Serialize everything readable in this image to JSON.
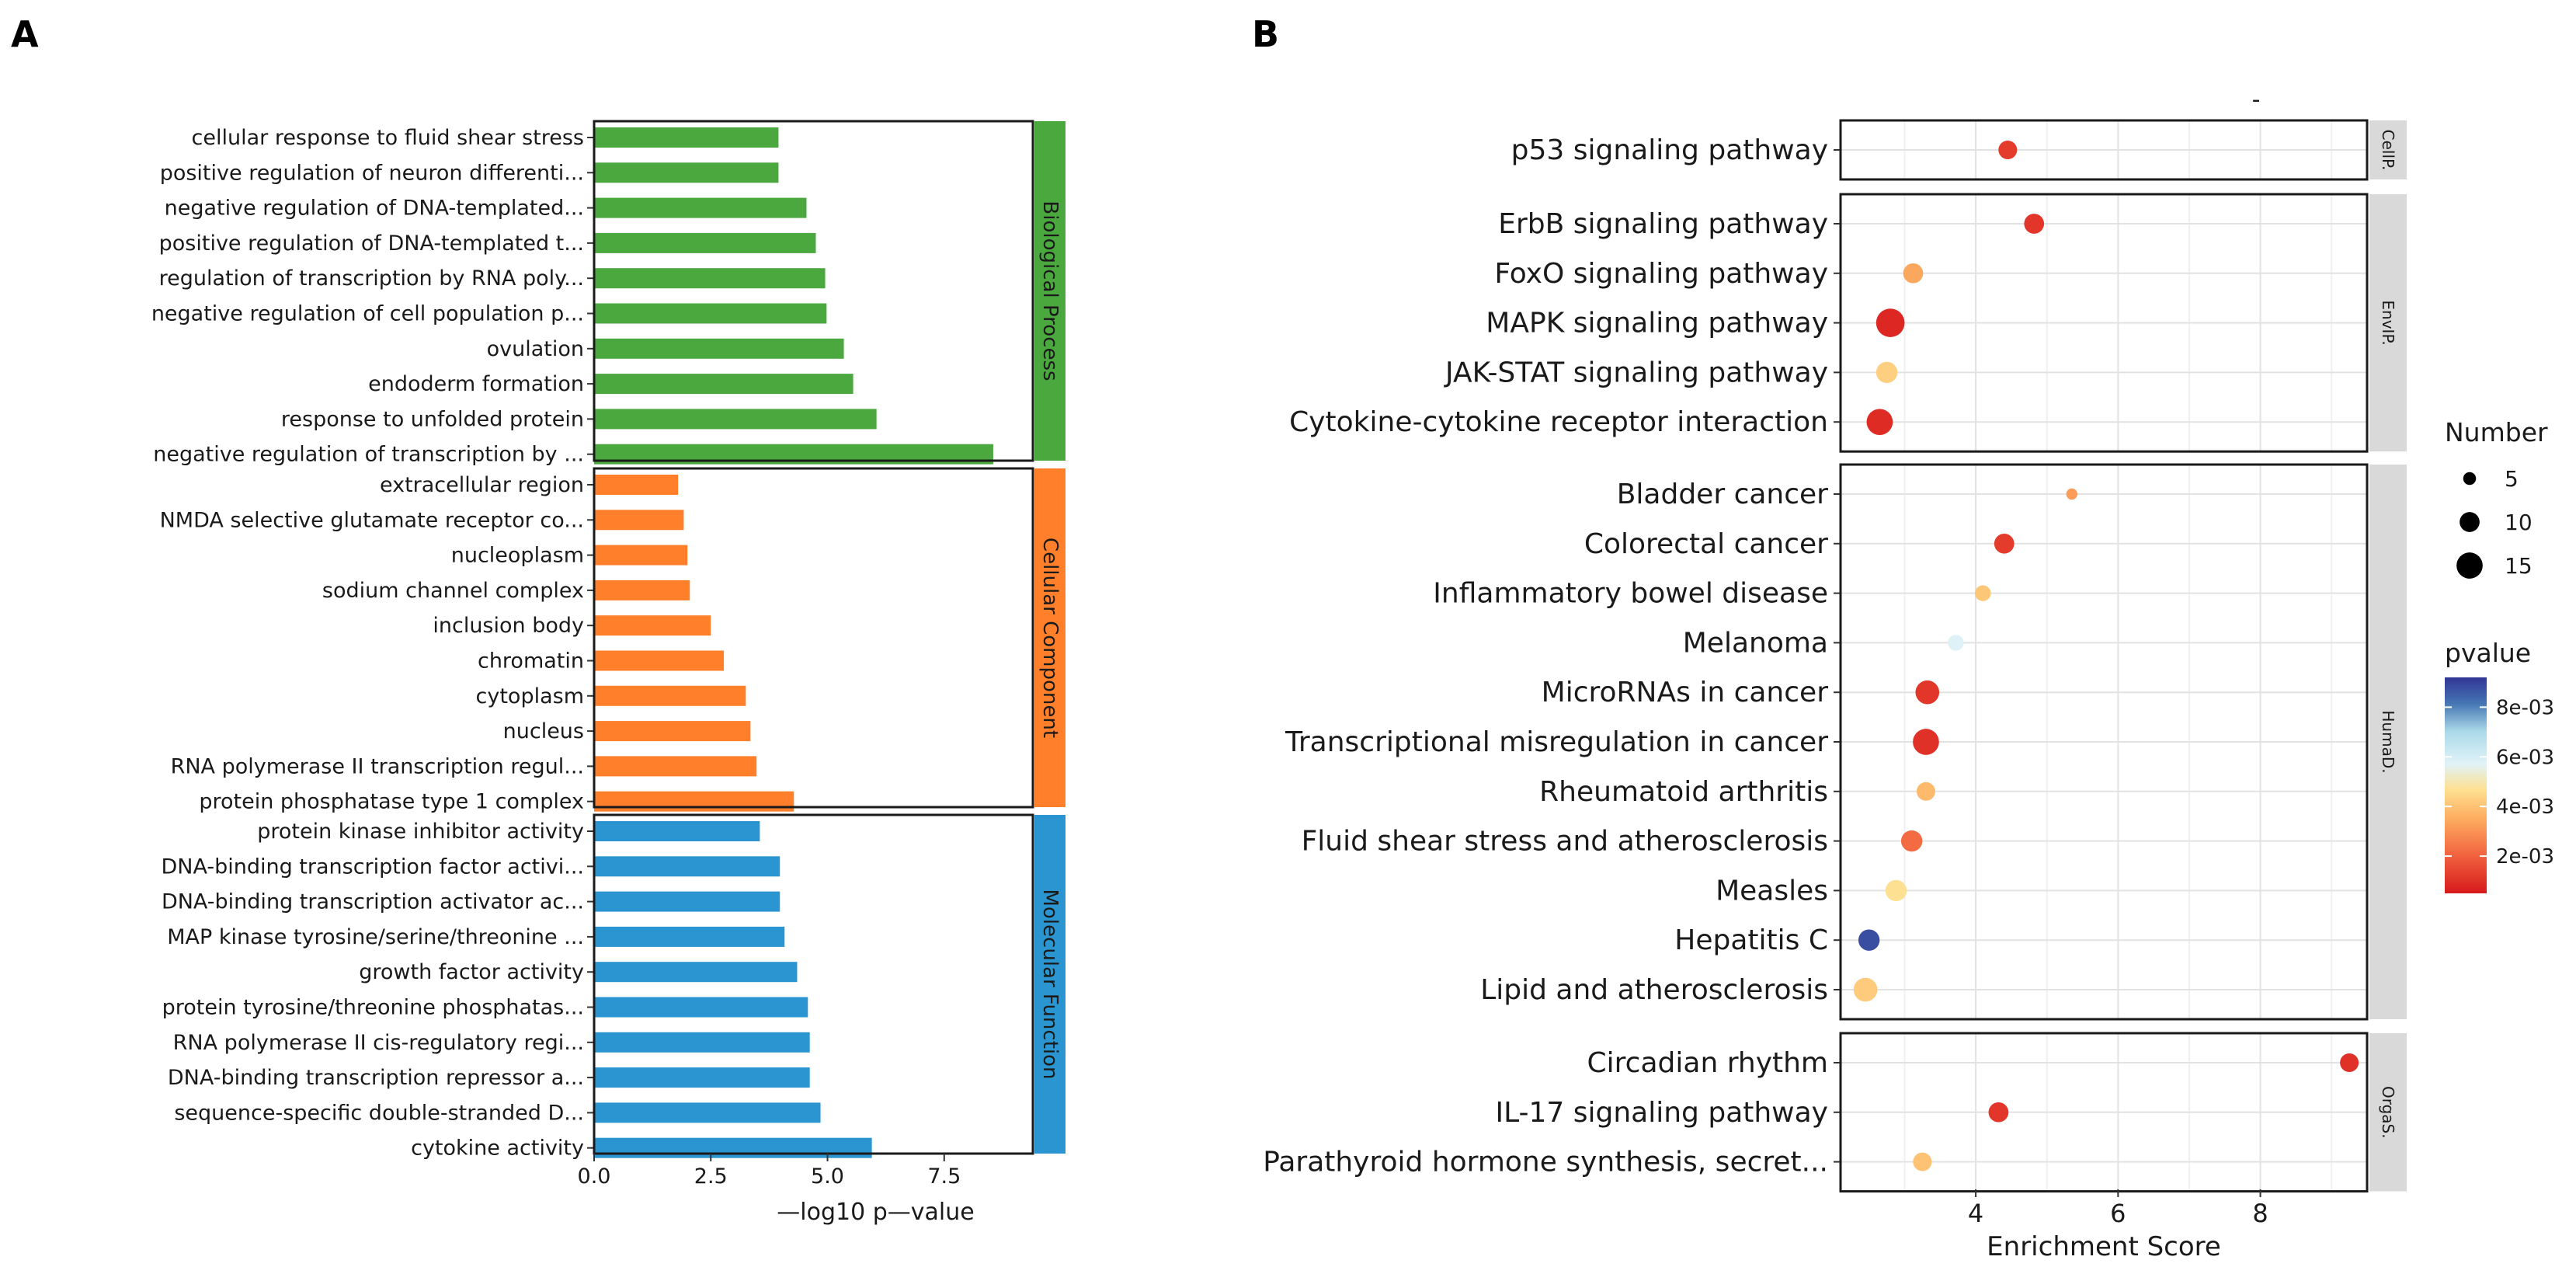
{
  "panels": {
    "a_label": "A",
    "b_label": "B"
  },
  "chart_data": [
    {
      "type": "bar",
      "orientation": "horizontal",
      "xlabel": "—log10  p—value",
      "xlim": [
        0,
        9.4
      ],
      "xticks": [
        0,
        2.5,
        5,
        7.5
      ],
      "xtick_labels": [
        "0.0",
        "2.5",
        "5.0",
        "7.5"
      ],
      "groups": [
        {
          "name": "Biological Process",
          "color": "#4aa83f",
          "categories": [
            "cellular response to fluid shear stress",
            "positive regulation of neuron differenti...",
            "negative regulation of DNA-templated...",
            "positive regulation of DNA-templated t...",
            "regulation of transcription by RNA poly...",
            "negative regulation of cell population p...",
            "ovulation",
            "endoderm formation",
            "response to unfolded protein",
            "negative regulation of transcription by ..."
          ],
          "values": [
            3.95,
            3.95,
            4.55,
            4.75,
            4.95,
            4.98,
            5.35,
            5.55,
            6.05,
            8.55
          ]
        },
        {
          "name": "Cellular Component",
          "color": "#ff7f2a",
          "categories": [
            "extracellular region",
            "NMDA selective glutamate receptor co...",
            "nucleoplasm",
            "sodium channel complex",
            "inclusion body",
            "chromatin",
            "cytoplasm",
            "nucleus",
            "RNA polymerase II transcription regul...",
            "protein phosphatase type 1 complex"
          ],
          "values": [
            1.8,
            1.92,
            2.0,
            2.05,
            2.5,
            2.78,
            3.25,
            3.35,
            3.48,
            4.28
          ]
        },
        {
          "name": "Molecular Function",
          "color": "#2a95d0",
          "categories": [
            "protein kinase inhibitor activity",
            "DNA-binding transcription factor activi...",
            "DNA-binding transcription activator ac...",
            "MAP kinase tyrosine/serine/threonine ...",
            "growth factor activity",
            "protein tyrosine/threonine phosphatas...",
            "RNA polymerase II cis-regulatory regi...",
            "DNA-binding transcription repressor a...",
            "sequence-specific double-stranded D...",
            "cytokine activity"
          ],
          "values": [
            3.55,
            3.98,
            3.98,
            4.08,
            4.35,
            4.58,
            4.62,
            4.62,
            4.85,
            5.95
          ]
        }
      ]
    },
    {
      "type": "scatter",
      "subtype": "dot-plot",
      "xlabel": "Enrichment Score",
      "xlim": [
        2.1,
        9.5
      ],
      "xticks": [
        4,
        6,
        8
      ],
      "xtick_labels": [
        "4",
        "6",
        "8"
      ],
      "top_mark": "-",
      "facets": [
        {
          "name": "CellP.",
          "terms": [
            {
              "term": "p53 signaling pathway",
              "x": 4.45,
              "number": 9,
              "pvalue": 0.0012
            }
          ]
        },
        {
          "name": "EnvIP.",
          "terms": [
            {
              "term": "ErbB signaling pathway",
              "x": 4.82,
              "number": 10,
              "pvalue": 0.0011
            },
            {
              "term": "FoxO signaling pathway",
              "x": 3.12,
              "number": 10,
              "pvalue": 0.0034
            },
            {
              "term": "MAPK signaling pathway",
              "x": 2.8,
              "number": 17,
              "pvalue": 0.0008
            },
            {
              "term": "JAK-STAT signaling pathway",
              "x": 2.75,
              "number": 11,
              "pvalue": 0.0043
            },
            {
              "term": "Cytokine-cytokine receptor interaction",
              "x": 2.65,
              "number": 15,
              "pvalue": 0.0009
            }
          ]
        },
        {
          "name": "HumaD.",
          "terms": [
            {
              "term": "Bladder cancer",
              "x": 5.35,
              "number": 4,
              "pvalue": 0.0032
            },
            {
              "term": "Colorectal cancer",
              "x": 4.4,
              "number": 10,
              "pvalue": 0.0012
            },
            {
              "term": "Inflammatory bowel disease",
              "x": 4.1,
              "number": 7,
              "pvalue": 0.0041
            },
            {
              "term": "Melanoma",
              "x": 3.72,
              "number": 7,
              "pvalue": 0.0058
            },
            {
              "term": "MicroRNAs in cancer",
              "x": 3.32,
              "number": 13,
              "pvalue": 0.0011
            },
            {
              "term": "Transcriptional misregulation in cancer",
              "x": 3.3,
              "number": 15,
              "pvalue": 0.001
            },
            {
              "term": "Rheumatoid arthritis",
              "x": 3.3,
              "number": 9,
              "pvalue": 0.0038
            },
            {
              "term": "Fluid shear stress and atherosclerosis",
              "x": 3.1,
              "number": 11,
              "pvalue": 0.0022
            },
            {
              "term": "Measles",
              "x": 2.88,
              "number": 11,
              "pvalue": 0.0047
            },
            {
              "term": "Hepatitis C",
              "x": 2.5,
              "number": 11,
              "pvalue": 0.0088
            },
            {
              "term": "Lipid and atherosclerosis",
              "x": 2.45,
              "number": 13,
              "pvalue": 0.0042
            }
          ]
        },
        {
          "name": "OrgaS.",
          "terms": [
            {
              "term": "Circadian rhythm",
              "x": 9.25,
              "number": 9,
              "pvalue": 0.001
            },
            {
              "term": "IL-17 signaling pathway",
              "x": 4.32,
              "number": 10,
              "pvalue": 0.0011
            },
            {
              "term": "Parathyroid hormone synthesis, secret...",
              "x": 3.25,
              "number": 9,
              "pvalue": 0.004
            }
          ]
        }
      ],
      "size_legend": {
        "title": "Number",
        "values": [
          5,
          10,
          15
        ],
        "labels": [
          "5",
          "10",
          "15"
        ]
      },
      "color_legend": {
        "title": "pvalue",
        "range": [
          0.0005,
          0.0092
        ],
        "ticks": [
          0.002,
          0.004,
          0.006,
          0.008
        ],
        "tick_labels": [
          "2e-03",
          "4e-03",
          "6e-03",
          "8e-03"
        ]
      }
    }
  ]
}
